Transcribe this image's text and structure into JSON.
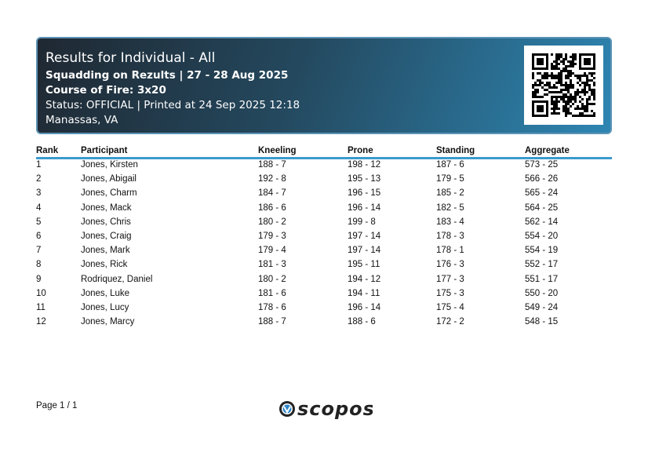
{
  "header": {
    "title": "Results for Individual - All",
    "subtitle": "Squadding on Rezults | 27 - 28 Aug 2025",
    "course": "Course of Fire: 3x20",
    "status": "Status: OFFICIAL | Printed at 24 Sep 2025 12:18",
    "location": "Manassas, VA",
    "qr_icon": "qr-code"
  },
  "table": {
    "columns": [
      "Rank",
      "Participant",
      "Kneeling",
      "Prone",
      "Standing",
      "Aggregate"
    ],
    "rows": [
      [
        "1",
        "Jones, Kirsten",
        "188 - 7",
        "198 - 12",
        "187 - 6",
        "573 - 25"
      ],
      [
        "2",
        "Jones, Abigail",
        "192 - 8",
        "195 - 13",
        "179 - 5",
        "566 - 26"
      ],
      [
        "3",
        "Jones, Charm",
        "184 - 7",
        "196 - 15",
        "185 - 2",
        "565 - 24"
      ],
      [
        "4",
        "Jones, Mack",
        "186 - 6",
        "196 - 14",
        "182 - 5",
        "564 - 25"
      ],
      [
        "5",
        "Jones, Chris",
        "180 - 2",
        "199 - 8",
        "183 - 4",
        "562 - 14"
      ],
      [
        "6",
        "Jones, Craig",
        "179 - 3",
        "197 - 14",
        "178 - 3",
        "554 - 20"
      ],
      [
        "7",
        "Jones, Mark",
        "179 - 4",
        "197 - 14",
        "178 - 1",
        "554 - 19"
      ],
      [
        "8",
        "Jones, Rick",
        "181 - 3",
        "195 - 11",
        "176 - 3",
        "552 - 17"
      ],
      [
        "9",
        "Rodriquez, Daniel",
        "180 - 2",
        "194 - 12",
        "177 - 3",
        "551 - 17"
      ],
      [
        "10",
        "Jones, Luke",
        "181 - 6",
        "194 - 11",
        "175 - 3",
        "550 - 20"
      ],
      [
        "11",
        "Jones, Lucy",
        "178 - 6",
        "196 - 14",
        "175 - 4",
        "549 - 24"
      ],
      [
        "12",
        "Jones, Marcy",
        "188 - 7",
        "188 - 6",
        "172 - 2",
        "548 - 15"
      ]
    ]
  },
  "footer": {
    "page": "Page 1 / 1",
    "logo_text": "scopos"
  },
  "colors": {
    "accent": "#3a9bd0",
    "header_dark": "#1f2832",
    "header_light": "#2e86b3"
  }
}
